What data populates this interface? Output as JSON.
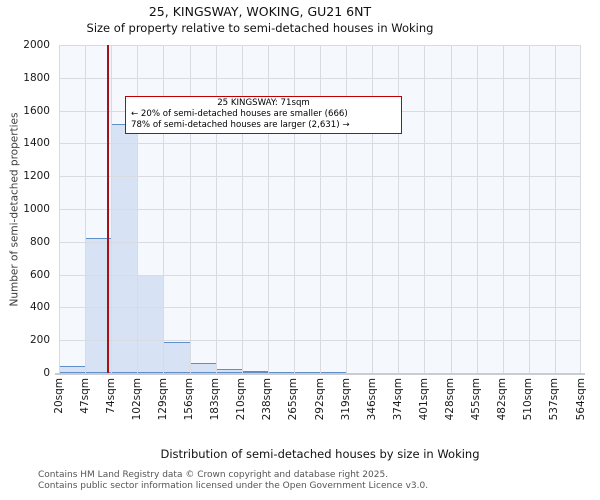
{
  "title": "25, KINGSWAY, WOKING, GU21 6NT",
  "subtitle": "Size of property relative to semi-detached houses in Woking",
  "annotation": {
    "line1": "25 KINGSWAY: 71sqm",
    "line2": "← 20% of semi-detached houses are smaller (666)",
    "line3": "78% of semi-detached houses are larger (2,631) →"
  },
  "chart_data": {
    "type": "bar",
    "title": "25, KINGSWAY, WOKING, GU21 6NT",
    "subtitle": "Size of property relative to semi-detached houses in Woking",
    "xlabel": "Distribution of semi-detached houses by size in Woking",
    "ylabel": "Number of semi-detached properties",
    "categories": [
      "20sqm",
      "47sqm",
      "74sqm",
      "102sqm",
      "129sqm",
      "156sqm",
      "183sqm",
      "210sqm",
      "238sqm",
      "265sqm",
      "292sqm",
      "319sqm",
      "346sqm",
      "374sqm",
      "401sqm",
      "428sqm",
      "455sqm",
      "482sqm",
      "510sqm",
      "537sqm",
      "564sqm"
    ],
    "values": [
      45,
      825,
      1520,
      600,
      190,
      60,
      25,
      12,
      8,
      5,
      4,
      0,
      0,
      0,
      0,
      0,
      0,
      0,
      0,
      0
    ],
    "ylim": [
      0,
      2000
    ],
    "ytick_step": 200,
    "yticks": [
      "0",
      "200",
      "400",
      "600",
      "800",
      "1000",
      "1200",
      "1400",
      "1600",
      "1800",
      "2000"
    ],
    "x_range_sqm": [
      20,
      564
    ],
    "marker_value_sqm": 71,
    "marker_label": "25 KINGSWAY: 71sqm",
    "smaller_count": 666,
    "smaller_pct": 20,
    "larger_count": 2631,
    "larger_pct": 78,
    "grid": true,
    "legend": null,
    "colors": {
      "bar_fill": "#d7e2f4",
      "bar_edge": "#5e8fc9",
      "marker": "#aa1116",
      "annotation_border": "#c00000",
      "grid": "#d8dbe2",
      "plot_bg": "#f5f8fd"
    }
  },
  "footer": {
    "line1": "Contains HM Land Registry data © Crown copyright and database right 2025.",
    "line2": "Contains public sector information licensed under the Open Government Licence v3.0."
  }
}
